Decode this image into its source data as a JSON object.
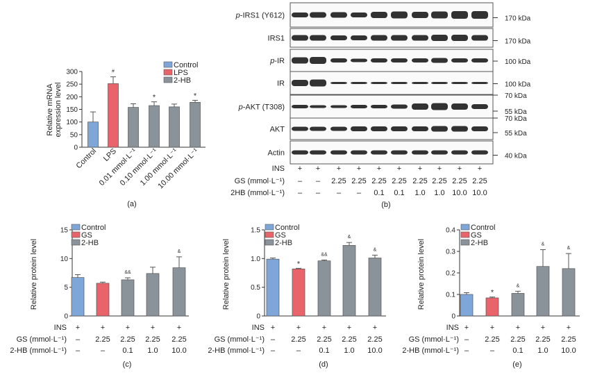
{
  "colors": {
    "control": "#7ea6d8",
    "treat": "#e8646a",
    "hb": "#8a939a",
    "band": "#1c1c1c"
  },
  "panel_a": {
    "label": "(a)",
    "legend": [
      "Control",
      "LPS",
      "2-HB"
    ],
    "ylabel_lines": [
      "Relative mRNA",
      "expression level"
    ],
    "yticks": [
      "0",
      "50",
      "100",
      "150",
      "200",
      "250",
      "300"
    ],
    "categories": [
      "Control",
      "LPS",
      "0.01 mmol·L⁻¹",
      "0.10 mmol·L⁻¹",
      "1.00 mmol·L⁻¹",
      "10.00 mmol·L⁻¹"
    ]
  },
  "panel_b": {
    "label": "(b)",
    "bands": [
      {
        "name": "p-IRS1 (Y612)",
        "ital": "p",
        "rest": "-IRS1 (Y612)",
        "kda": [
          "170 kDa"
        ]
      },
      {
        "name": "IRS1",
        "ital": "",
        "rest": "IRS1",
        "kda": [
          "170 kDa"
        ]
      },
      {
        "name": "p-IR",
        "ital": "p",
        "rest": "-IR",
        "kda": [
          "100 kDa"
        ]
      },
      {
        "name": "IR",
        "ital": "",
        "rest": "IR",
        "kda": [
          "100 kDa"
        ]
      },
      {
        "name": "p-AKT (T308)",
        "ital": "p",
        "rest": "-AKT (T308)",
        "kda": [
          "70 kDa",
          "55 kDa"
        ]
      },
      {
        "name": "AKT",
        "ital": "",
        "rest": "AKT",
        "kda": [
          "70 kDa",
          "55 kDa"
        ]
      },
      {
        "name": "Actin",
        "ital": "",
        "rest": "Actin",
        "kda": [
          "40 kDa"
        ]
      }
    ],
    "cond_labels": [
      "INS",
      "GS (mmol·L⁻¹)",
      "2HB (mmol·L⁻¹)"
    ],
    "cond_rows": [
      [
        "+",
        "+",
        "+",
        "+",
        "+",
        "+",
        "+",
        "+",
        "+",
        "+"
      ],
      [
        "–",
        "–",
        "2.25",
        "2.25",
        "2.25",
        "2.25",
        "2.25",
        "2.25",
        "2.25",
        "2.25"
      ],
      [
        "–",
        "–",
        "–",
        "–",
        "0.1",
        "0.1",
        "1.0",
        "1.0",
        "10.0",
        "10.0"
      ]
    ]
  },
  "bottom_conditions": {
    "labels": [
      "INS",
      "GS (mmol·L⁻¹)",
      "2-HB (mmol·L⁻¹)"
    ],
    "rows": [
      [
        "+",
        "+",
        "+",
        "+",
        "+"
      ],
      [
        "–",
        "2.25",
        "2.25",
        "2.25",
        "2.25"
      ],
      [
        "–",
        "–",
        "0.1",
        "1.0",
        "10.0"
      ]
    ]
  },
  "panel_c": {
    "label": "(c)",
    "legend": [
      "Control",
      "GS",
      "2-HB"
    ],
    "ylabel": "Relative protein level",
    "yticks": [
      "0",
      "5",
      "10",
      "15"
    ]
  },
  "panel_d": {
    "label": "(d)",
    "legend": [
      "Control",
      "GS",
      "2-HB"
    ],
    "ylabel": "Relative protein level",
    "yticks": [
      "0",
      "0.5",
      "1.0",
      "1.5"
    ]
  },
  "panel_e": {
    "label": "(e)",
    "legend": [
      "Control",
      "GS",
      "2-HB"
    ],
    "ylabel": "Relative protein level",
    "yticks": [
      "0",
      "0.1",
      "0.2",
      "0.3",
      "0.4"
    ]
  },
  "chart_data": [
    {
      "type": "bar",
      "panel": "a",
      "categories": [
        "Control",
        "LPS",
        "0.01 mmol·L⁻¹",
        "0.10 mmol·L⁻¹",
        "1.00 mmol·L⁻¹",
        "10.00 mmol·L⁻¹"
      ],
      "values": [
        100,
        252,
        158,
        165,
        160,
        178
      ],
      "errors": [
        40,
        27,
        14,
        15,
        11,
        8
      ],
      "annotations": [
        "",
        "#",
        "",
        "*",
        "",
        "*"
      ],
      "ylabel": "Relative mRNA expression level",
      "ylim": [
        0,
        300
      ],
      "legend": [
        "Control",
        "LPS",
        "2-HB"
      ],
      "legend_position": "top-right"
    },
    {
      "type": "bar",
      "panel": "c",
      "values": [
        6.7,
        5.7,
        6.3,
        7.4,
        8.4
      ],
      "errors": [
        0.5,
        0.2,
        0.35,
        1.1,
        1.9
      ],
      "annotations": [
        "",
        "",
        "&&",
        "",
        "&"
      ],
      "ylabel": "Relative protein level",
      "ylim": [
        0,
        15
      ],
      "legend": [
        "Control",
        "GS",
        "2-HB"
      ],
      "legend_position": "top-left"
    },
    {
      "type": "bar",
      "panel": "d",
      "values": [
        0.99,
        0.82,
        0.96,
        1.23,
        1.01
      ],
      "errors": [
        0.02,
        0.01,
        0.015,
        0.05,
        0.05
      ],
      "annotations": [
        "",
        "*",
        "&&",
        "&",
        "&"
      ],
      "ylabel": "Relative protein level",
      "ylim": [
        0,
        1.5
      ],
      "legend": [
        "Control",
        "GS",
        "2-HB"
      ],
      "legend_position": "top-left"
    },
    {
      "type": "bar",
      "panel": "e",
      "values": [
        0.1,
        0.084,
        0.105,
        0.23,
        0.22
      ],
      "errors": [
        0.008,
        0.004,
        0.01,
        0.078,
        0.07
      ],
      "annotations": [
        "",
        "*",
        "&",
        "&",
        "&"
      ],
      "ylabel": "Relative protein level",
      "ylim": [
        0,
        0.4
      ],
      "legend": [
        "Control",
        "GS",
        "2-HB"
      ],
      "legend_position": "top-left"
    }
  ]
}
